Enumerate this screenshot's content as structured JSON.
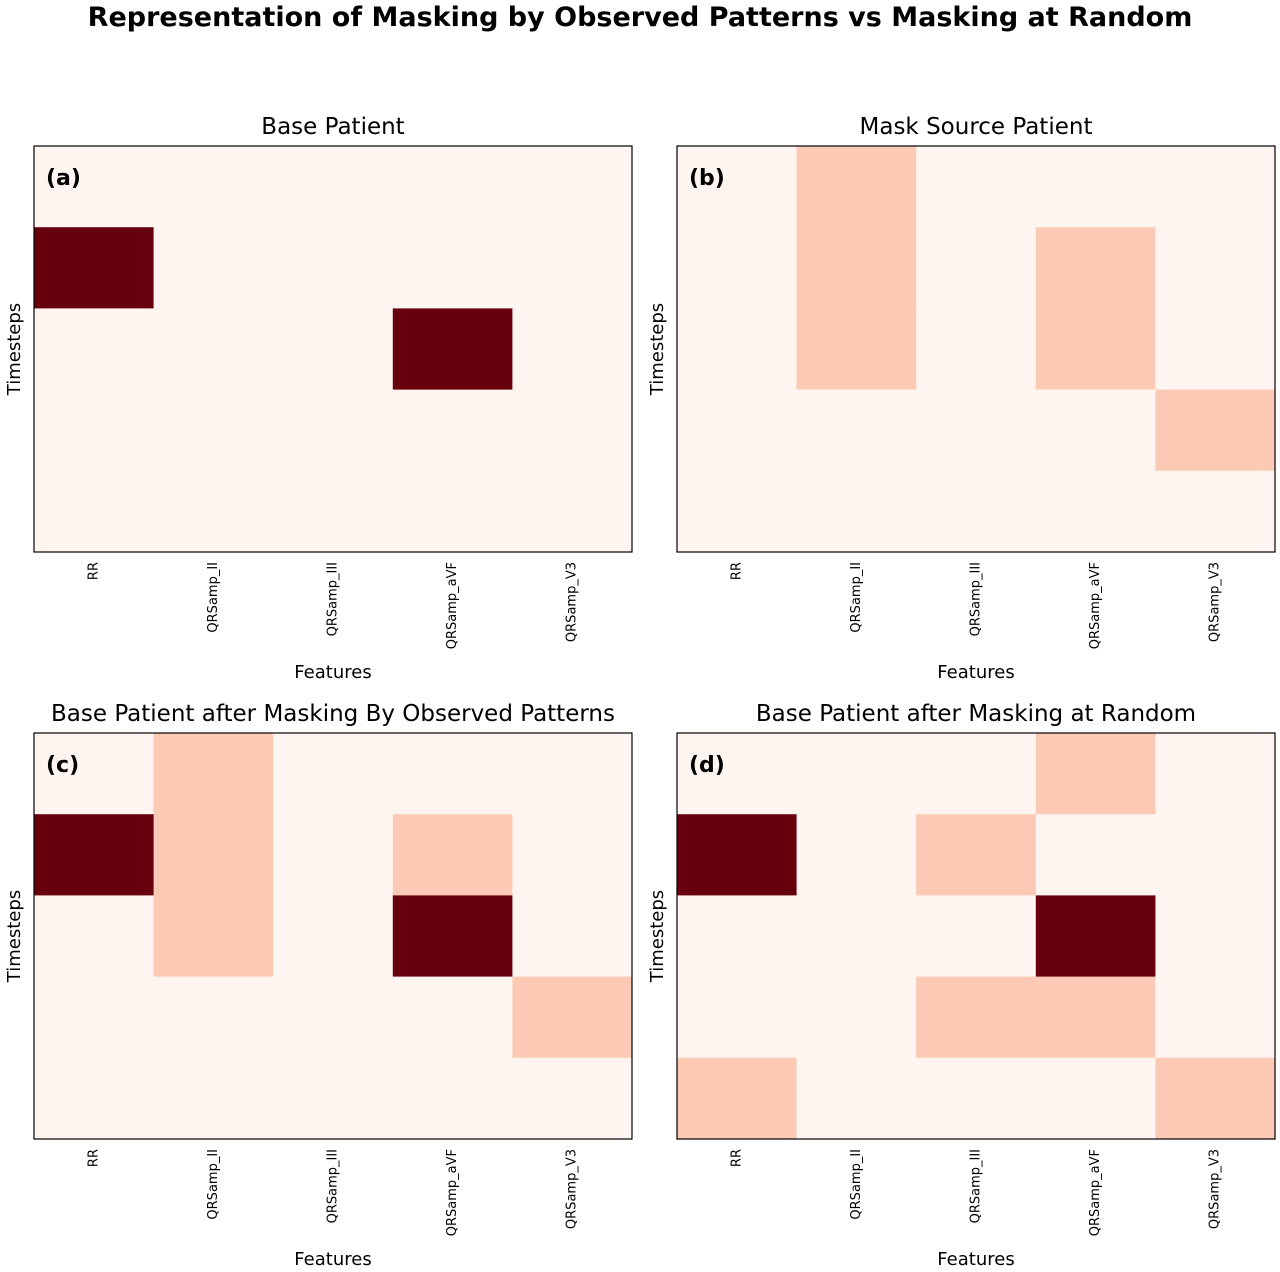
{
  "figure": {
    "title": "Representation of Masking by Observed Patterns vs Masking at Random"
  },
  "colors": {
    "background": "#fff5f0",
    "mask": "#fcc9b4",
    "observed": "#67000d",
    "frame": "#000000"
  },
  "legend_codes": {
    "0": "background",
    "1": "mask",
    "2": "observed"
  },
  "chart_data": [
    {
      "type": "heatmap",
      "panel": "(a)",
      "title": "Base Patient",
      "xlabel": "Features",
      "ylabel": "Timesteps",
      "x_categories": [
        "RR",
        "QRSamp_II",
        "QRSamp_III",
        "QRSamp_aVF",
        "QRSamp_V3"
      ],
      "n_timesteps": 5,
      "grid": false,
      "matrix": [
        [
          0,
          0,
          0,
          0,
          0
        ],
        [
          2,
          0,
          0,
          0,
          0
        ],
        [
          0,
          0,
          0,
          2,
          0
        ],
        [
          0,
          0,
          0,
          0,
          0
        ],
        [
          0,
          0,
          0,
          0,
          0
        ]
      ]
    },
    {
      "type": "heatmap",
      "panel": "(b)",
      "title": "Mask Source Patient",
      "xlabel": "Features",
      "ylabel": "Timesteps",
      "x_categories": [
        "RR",
        "QRSamp_II",
        "QRSamp_III",
        "QRSamp_aVF",
        "QRSamp_V3"
      ],
      "n_timesteps": 5,
      "grid": false,
      "matrix": [
        [
          0,
          1,
          0,
          0,
          0
        ],
        [
          0,
          1,
          0,
          1,
          0
        ],
        [
          0,
          1,
          0,
          1,
          0
        ],
        [
          0,
          0,
          0,
          0,
          1
        ],
        [
          0,
          0,
          0,
          0,
          0
        ]
      ]
    },
    {
      "type": "heatmap",
      "panel": "(c)",
      "title": "Base Patient after Masking By Observed Patterns",
      "xlabel": "Features",
      "ylabel": "Timesteps",
      "x_categories": [
        "RR",
        "QRSamp_II",
        "QRSamp_III",
        "QRSamp_aVF",
        "QRSamp_V3"
      ],
      "n_timesteps": 5,
      "grid": false,
      "matrix": [
        [
          0,
          1,
          0,
          0,
          0
        ],
        [
          2,
          1,
          0,
          1,
          0
        ],
        [
          0,
          1,
          0,
          2,
          0
        ],
        [
          0,
          0,
          0,
          0,
          1
        ],
        [
          0,
          0,
          0,
          0,
          0
        ]
      ]
    },
    {
      "type": "heatmap",
      "panel": "(d)",
      "title": "Base Patient after Masking at Random",
      "xlabel": "Features",
      "ylabel": "Timesteps",
      "x_categories": [
        "RR",
        "QRSamp_II",
        "QRSamp_III",
        "QRSamp_aVF",
        "QRSamp_V3"
      ],
      "n_timesteps": 5,
      "grid": false,
      "matrix": [
        [
          0,
          0,
          0,
          1,
          0
        ],
        [
          2,
          0,
          1,
          0,
          0
        ],
        [
          0,
          0,
          0,
          2,
          0
        ],
        [
          0,
          0,
          1,
          1,
          0
        ],
        [
          1,
          0,
          0,
          0,
          1
        ]
      ]
    }
  ]
}
